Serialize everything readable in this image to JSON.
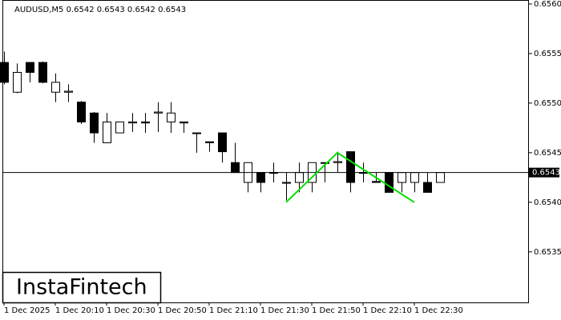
{
  "chart_data": {
    "type": "candlestick",
    "title": "AUDUSD,M5  0.6542 0.6543 0.6542 0.6543",
    "watermark": "InstaFintech",
    "categories": [
      "1 Dec 2025",
      null,
      null,
      null,
      "1 Dec 20:10",
      null,
      null,
      null,
      "1 Dec 20:30",
      null,
      null,
      null,
      "1 Dec 20:50",
      null,
      null,
      null,
      "1 Dec 21:10",
      null,
      null,
      null,
      "1 Dec 21:30",
      null,
      null,
      null,
      "1 Dec 21:50",
      null,
      null,
      null,
      "1 Dec 22:10",
      null,
      null,
      null,
      "1 Dec 22:30",
      null,
      null
    ],
    "open": [
      0.65541,
      0.65511,
      0.65541,
      0.65541,
      0.65511,
      0.65511,
      0.65501,
      0.6549,
      0.6546,
      0.6547,
      0.6548,
      0.65481,
      0.6549,
      0.65481,
      0.65481,
      0.6547,
      0.65461,
      0.6547,
      0.6544,
      0.6542,
      0.6543,
      0.6543,
      0.6542,
      0.6542,
      0.6542,
      0.6544,
      0.6544,
      0.65451,
      0.6543,
      0.65421,
      0.6543,
      0.6542,
      0.6542,
      0.6542,
      0.6542
    ],
    "high": [
      0.65552,
      0.6554,
      0.65541,
      0.65542,
      0.6553,
      0.65519,
      0.65502,
      0.65491,
      0.6549,
      0.65481,
      0.6549,
      0.6549,
      0.65501,
      0.65501,
      0.65481,
      0.6547,
      0.65461,
      0.6547,
      0.6546,
      0.6544,
      0.6543,
      0.6544,
      0.6543,
      0.6544,
      0.6544,
      0.6544,
      0.65451,
      0.65451,
      0.6544,
      0.6543,
      0.6543,
      0.6543,
      0.6543,
      0.6543,
      0.6543
    ],
    "low": [
      0.65519,
      0.6551,
      0.65521,
      0.6552,
      0.65501,
      0.65501,
      0.65479,
      0.6546,
      0.6546,
      0.6547,
      0.65471,
      0.6547,
      0.65471,
      0.6547,
      0.6547,
      0.6545,
      0.65451,
      0.6544,
      0.6543,
      0.6541,
      0.6541,
      0.6542,
      0.65402,
      0.6541,
      0.6541,
      0.6542,
      0.6543,
      0.6541,
      0.6542,
      0.6542,
      0.6541,
      0.6541,
      0.6541,
      0.6541,
      0.6542
    ],
    "close": [
      0.65521,
      0.65531,
      0.65531,
      0.65521,
      0.65521,
      0.65512,
      0.65481,
      0.6547,
      0.65481,
      0.65481,
      0.65481,
      0.6548,
      0.65491,
      0.6549,
      0.6548,
      0.6547,
      0.6546,
      0.65451,
      0.6543,
      0.6544,
      0.6542,
      0.6543,
      0.6542,
      0.6543,
      0.6544,
      0.6544,
      0.65441,
      0.6542,
      0.6543,
      0.6542,
      0.6541,
      0.6543,
      0.6543,
      0.6541,
      0.6543
    ],
    "up_color": "#ffffff",
    "down_color": "#000000",
    "pattern": {
      "color": "#00e000",
      "x": [
        22,
        26,
        32
      ],
      "values": [
        0.654,
        0.6545,
        0.654
      ]
    },
    "price_line": 0.6543,
    "ylim": [
      0.65299,
      0.65604
    ],
    "yticks": [
      {
        "value": 0.6535,
        "label": "0.6535"
      },
      {
        "value": 0.654,
        "label": "0.6540"
      },
      {
        "value": 0.6545,
        "label": "0.6545"
      },
      {
        "value": 0.655,
        "label": "0.6550"
      },
      {
        "value": 0.6555,
        "label": "0.6555"
      },
      {
        "value": 0.656,
        "label": "0.6560"
      }
    ]
  }
}
